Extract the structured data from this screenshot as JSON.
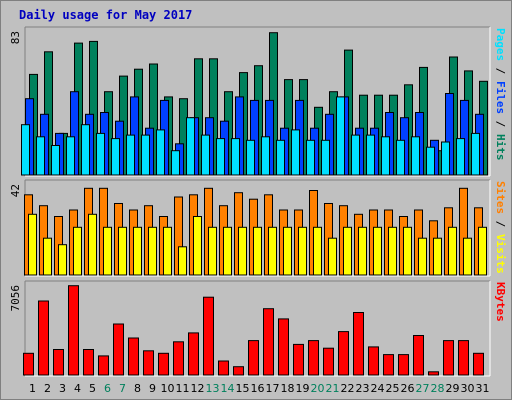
{
  "chart_data": {
    "type": "bar",
    "title": "Daily usage for May 2017",
    "categories": [
      "1",
      "2",
      "3",
      "4",
      "5",
      "6",
      "7",
      "8",
      "9",
      "10",
      "11",
      "12",
      "13",
      "14",
      "15",
      "16",
      "17",
      "18",
      "19",
      "20",
      "21",
      "22",
      "23",
      "24",
      "25",
      "26",
      "27",
      "28",
      "29",
      "30",
      "31"
    ],
    "weekend_days": [
      "6",
      "7",
      "13",
      "14",
      "20",
      "21",
      "27",
      "28"
    ],
    "colors": {
      "hits": "#00805c",
      "files": "#0040ff",
      "pages": "#00e0ff",
      "visits": "#ff8000",
      "sites": "#ffff00",
      "kbytes": "#ff0000",
      "weekend_label": "#00805c",
      "weekday_label": "#000000",
      "title": "#0000c0"
    },
    "panels": [
      {
        "id": "top",
        "ymax_label": "83",
        "ymax": 83,
        "legend": [
          {
            "text": "Pages",
            "color": "#00e0ff"
          },
          {
            "text": " / ",
            "color": "#000000"
          },
          {
            "text": "Files",
            "color": "#0040ff"
          },
          {
            "text": " / ",
            "color": "#000000"
          },
          {
            "text": "Hits",
            "color": "#00805c"
          }
        ],
        "series": [
          {
            "name": "Hits",
            "values": [
              58,
              71,
              24,
              76,
              77,
              48,
              57,
              61,
              64,
              45,
              44,
              67,
              67,
              48,
              59,
              63,
              82,
              55,
              55,
              39,
              48,
              72,
              46,
              46,
              46,
              52,
              62,
              14,
              68,
              60,
              54
            ]
          },
          {
            "name": "Files",
            "values": [
              44,
              35,
              24,
              48,
              35,
              36,
              31,
              45,
              27,
              43,
              18,
              33,
              33,
              31,
              45,
              43,
              43,
              27,
              43,
              27,
              35,
              45,
              27,
              27,
              36,
              33,
              36,
              20,
              47,
              43,
              35
            ]
          },
          {
            "name": "Pages",
            "values": [
              29,
              22,
              17,
              22,
              29,
              24,
              21,
              23,
              23,
              26,
              14,
              33,
              23,
              21,
              21,
              20,
              22,
              20,
              26,
              20,
              20,
              45,
              23,
              23,
              22,
              20,
              22,
              16,
              19,
              21,
              24
            ]
          }
        ]
      },
      {
        "id": "middle",
        "ymax_label": "42",
        "ymax": 42,
        "legend": [
          {
            "text": "Sites",
            "color": "#ff8000"
          },
          {
            "text": " / ",
            "color": "#000000"
          },
          {
            "text": "Visits",
            "color": "#ffff00"
          }
        ],
        "series": [
          {
            "name": "Visits",
            "values": [
              37,
              32,
              27,
              30,
              40,
              40,
              33,
              30,
              32,
              27,
              36,
              37,
              40,
              32,
              38,
              35,
              37,
              30,
              30,
              39,
              33,
              32,
              28,
              30,
              30,
              27,
              30,
              25,
              31,
              40,
              31
            ]
          },
          {
            "name": "Sites",
            "values": [
              28,
              17,
              14,
              22,
              28,
              22,
              22,
              22,
              22,
              22,
              13,
              27,
              22,
              22,
              22,
              22,
              22,
              22,
              22,
              22,
              17,
              22,
              22,
              22,
              22,
              22,
              17,
              17,
              22,
              17,
              22
            ]
          }
        ]
      },
      {
        "id": "bottom",
        "ymax_label": "7056",
        "ymax": 7056,
        "legend": [
          {
            "text": "KBytes",
            "color": "#ff0000"
          }
        ],
        "series": [
          {
            "name": "KBytes",
            "values": [
              1700,
              5800,
              2000,
              7000,
              2000,
              1500,
              4000,
              2900,
              1900,
              1700,
              2600,
              3300,
              6100,
              1100,
              650,
              2700,
              5200,
              4400,
              2400,
              2700,
              2100,
              3400,
              4900,
              2200,
              1600,
              1600,
              3100,
              250,
              2700,
              2700,
              1700
            ]
          }
        ]
      }
    ]
  }
}
